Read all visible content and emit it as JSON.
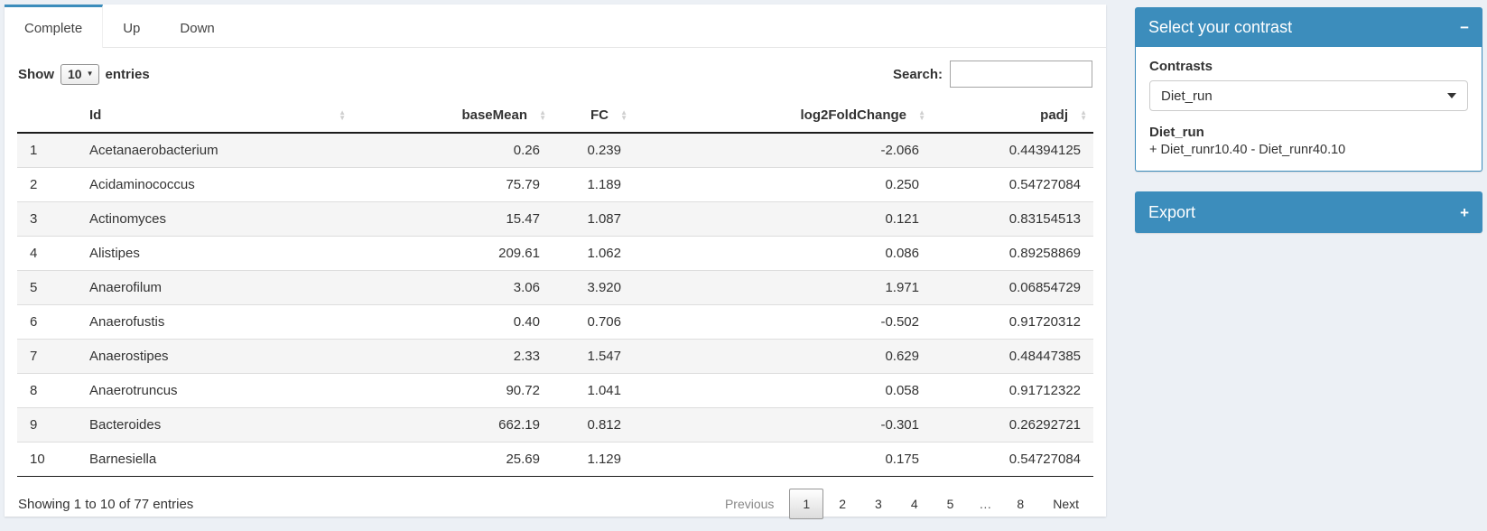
{
  "colors": {
    "primary": "#3c8dbc",
    "page_bg": "#ecf0f5"
  },
  "tabs": [
    {
      "label": "Complete",
      "active": true
    },
    {
      "label": "Up",
      "active": false
    },
    {
      "label": "Down",
      "active": false
    }
  ],
  "controls": {
    "show_label": "Show",
    "page_size": "10",
    "entries_label": "entries",
    "search_label": "Search:",
    "search_value": ""
  },
  "table": {
    "columns": [
      {
        "label": "",
        "sortable": false,
        "align": "left"
      },
      {
        "label": "Id",
        "sortable": true,
        "align": "left"
      },
      {
        "label": "baseMean",
        "sortable": true,
        "align": "right"
      },
      {
        "label": "FC",
        "sortable": true,
        "align": "right"
      },
      {
        "label": "log2FoldChange",
        "sortable": true,
        "align": "right"
      },
      {
        "label": "padj",
        "sortable": true,
        "align": "right"
      }
    ],
    "rows": [
      [
        "1",
        "Acetanaerobacterium",
        "0.26",
        "0.239",
        "-2.066",
        "0.44394125"
      ],
      [
        "2",
        "Acidaminococcus",
        "75.79",
        "1.189",
        "0.250",
        "0.54727084"
      ],
      [
        "3",
        "Actinomyces",
        "15.47",
        "1.087",
        "0.121",
        "0.83154513"
      ],
      [
        "4",
        "Alistipes",
        "209.61",
        "1.062",
        "0.086",
        "0.89258869"
      ],
      [
        "5",
        "Anaerofilum",
        "3.06",
        "3.920",
        "1.971",
        "0.06854729"
      ],
      [
        "6",
        "Anaerofustis",
        "0.40",
        "0.706",
        "-0.502",
        "0.91720312"
      ],
      [
        "7",
        "Anaerostipes",
        "2.33",
        "1.547",
        "0.629",
        "0.48447385"
      ],
      [
        "8",
        "Anaerotruncus",
        "90.72",
        "1.041",
        "0.058",
        "0.91712322"
      ],
      [
        "9",
        "Bacteroides",
        "662.19",
        "0.812",
        "-0.301",
        "0.26292721"
      ],
      [
        "10",
        "Barnesiella",
        "25.69",
        "1.129",
        "0.175",
        "0.54727084"
      ]
    ],
    "info": "Showing 1 to 10 of 77 entries",
    "pagination": {
      "previous": "Previous",
      "pages": [
        "1",
        "2",
        "3",
        "4",
        "5",
        "…",
        "8"
      ],
      "current": "1",
      "next": "Next"
    }
  },
  "panel": {
    "contrast_box": {
      "title": "Select your contrast",
      "collapse_icon": "−",
      "contrasts_label": "Contrasts",
      "selected_contrast": "Diet_run",
      "contrast_name": "Diet_run",
      "contrast_formula": "+ Diet_runr10.40 - Diet_runr40.10"
    },
    "export_box": {
      "title": "Export",
      "expand_icon": "+"
    }
  }
}
